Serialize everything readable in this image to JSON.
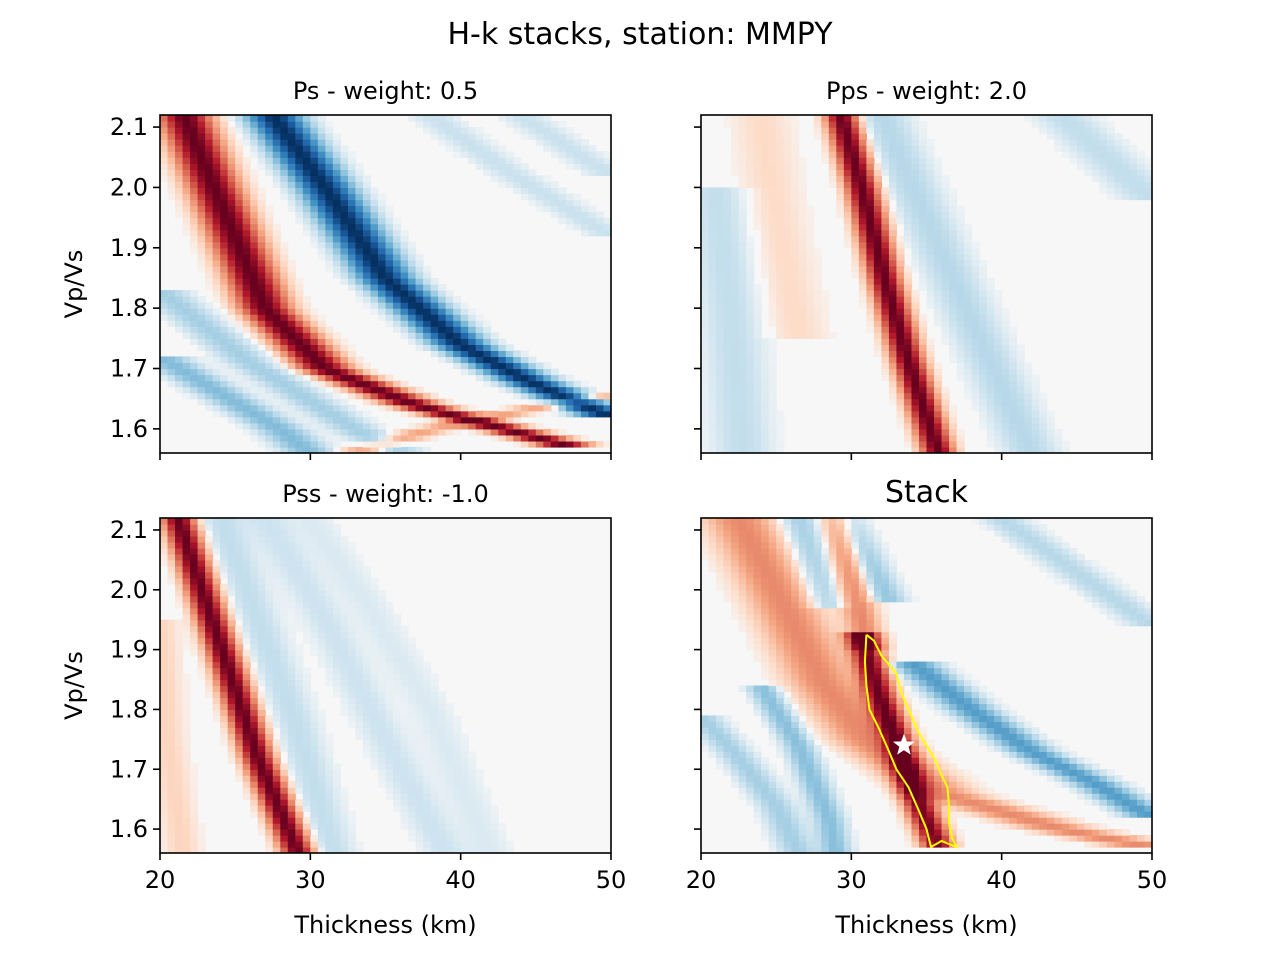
{
  "figure": {
    "title": "H-k stacks, station: MMPY"
  },
  "chart_data": [
    {
      "id": "ps",
      "type": "heatmap",
      "title": "Ps - weight: 0.5",
      "xlabel": "",
      "ylabel": "Vp/Vs",
      "xlim": [
        20,
        50
      ],
      "ylim": [
        1.56,
        2.12
      ],
      "xticks": [
        20,
        30,
        40,
        50
      ],
      "xtick_labels": [],
      "yticks": [
        1.6,
        1.7,
        1.8,
        1.9,
        2.0,
        2.1
      ],
      "ytick_labels": [
        "1.6",
        "1.7",
        "1.8",
        "1.9",
        "2.0",
        "2.1"
      ],
      "colormap": "RdBu_r",
      "bands": [
        {
          "sign": "positive",
          "amplitude": 1.0,
          "width_km": 1.6,
          "path": [
            [
              21.6,
              2.12
            ],
            [
              23.6,
              2.0
            ],
            [
              27.0,
              1.8
            ],
            [
              31.0,
              1.7
            ],
            [
              37.0,
              1.64
            ],
            [
              47.5,
              1.57
            ]
          ]
        },
        {
          "sign": "negative",
          "amplitude": 1.0,
          "width_km": 1.7,
          "path": [
            [
              27.5,
              2.12
            ],
            [
              31.0,
              2.0
            ],
            [
              35.0,
              1.85
            ],
            [
              40.0,
              1.74
            ],
            [
              44.5,
              1.68
            ],
            [
              50.0,
              1.62
            ]
          ]
        },
        {
          "sign": "negative",
          "amplitude": 0.3,
          "width_km": 1.6,
          "path": [
            [
              20.0,
              1.72
            ],
            [
              24.0,
              1.66
            ],
            [
              28.0,
              1.6
            ],
            [
              30.0,
              1.56
            ]
          ]
        },
        {
          "sign": "negative",
          "amplitude": 0.2,
          "width_km": 1.6,
          "path": [
            [
              20.0,
              1.83
            ],
            [
              26.0,
              1.71
            ],
            [
              33.0,
              1.6
            ],
            [
              36.0,
              1.56
            ]
          ]
        },
        {
          "sign": "negative",
          "amplitude": 0.1,
          "width_km": 1.5,
          "path": [
            [
              44.0,
              2.12
            ],
            [
              47.0,
              2.07
            ],
            [
              50.0,
              2.02
            ]
          ]
        },
        {
          "sign": "negative",
          "amplitude": 0.1,
          "width_km": 1.5,
          "path": [
            [
              38.0,
              2.12
            ],
            [
              43.0,
              2.03
            ],
            [
              50.0,
              1.92
            ]
          ]
        },
        {
          "sign": "positive",
          "amplitude": 0.25,
          "width_km": 1.5,
          "path": [
            [
              33.0,
              1.56
            ],
            [
              38.0,
              1.6
            ],
            [
              44.0,
              1.63
            ],
            [
              50.0,
              1.66
            ]
          ]
        }
      ]
    },
    {
      "id": "pps",
      "type": "heatmap",
      "title": "Pps - weight: 2.0",
      "xlabel": "",
      "ylabel": "",
      "xlim": [
        20,
        50
      ],
      "ylim": [
        1.56,
        2.12
      ],
      "xticks": [
        20,
        30,
        40,
        50
      ],
      "xtick_labels": [],
      "yticks": [
        1.6,
        1.7,
        1.8,
        1.9,
        2.0,
        2.1
      ],
      "ytick_labels": [],
      "colormap": "RdBu_r",
      "bands": [
        {
          "sign": "positive",
          "amplitude": 1.0,
          "width_km": 1.0,
          "path": [
            [
              29.3,
              2.12
            ],
            [
              30.7,
              2.0
            ],
            [
              32.2,
              1.85
            ],
            [
              33.7,
              1.72
            ],
            [
              35.8,
              1.56
            ]
          ]
        },
        {
          "sign": "negative",
          "amplitude": 0.15,
          "width_km": 1.8,
          "path": [
            [
              32.0,
              2.12
            ],
            [
              35.0,
              1.95
            ],
            [
              38.0,
              1.78
            ],
            [
              42.0,
              1.56
            ]
          ]
        },
        {
          "sign": "negative",
          "amplitude": 0.12,
          "width_km": 2.0,
          "path": [
            [
              21.0,
              2.0
            ],
            [
              22.0,
              1.8
            ],
            [
              22.8,
              1.56
            ]
          ]
        },
        {
          "sign": "positive",
          "amplitude": 0.08,
          "width_km": 2.0,
          "path": [
            [
              24.0,
              2.12
            ],
            [
              25.0,
              1.95
            ],
            [
              26.5,
              1.75
            ]
          ]
        },
        {
          "sign": "negative",
          "amplitude": 0.12,
          "width_km": 2.0,
          "path": [
            [
              44.0,
              2.12
            ],
            [
              47.0,
              2.05
            ],
            [
              50.0,
              1.98
            ]
          ]
        }
      ]
    },
    {
      "id": "pss",
      "type": "heatmap",
      "title": "Pss - weight: -1.0",
      "xlabel": "Thickness (km)",
      "ylabel": "Vp/Vs",
      "xlim": [
        20,
        50
      ],
      "ylim": [
        1.56,
        2.12
      ],
      "xticks": [
        20,
        30,
        40,
        50
      ],
      "xtick_labels": [
        "20",
        "30",
        "40",
        "50"
      ],
      "yticks": [
        1.6,
        1.7,
        1.8,
        1.9,
        2.0,
        2.1
      ],
      "ytick_labels": [
        "1.6",
        "1.7",
        "1.8",
        "1.9",
        "2.0",
        "2.1"
      ],
      "colormap": "RdBu_r",
      "bands": [
        {
          "sign": "positive",
          "amplitude": 1.0,
          "width_km": 1.0,
          "path": [
            [
              21.2,
              2.12
            ],
            [
              22.8,
              2.0
            ],
            [
              24.8,
              1.85
            ],
            [
              26.5,
              1.72
            ],
            [
              29.2,
              1.56
            ]
          ]
        },
        {
          "sign": "negative",
          "amplitude": 0.12,
          "width_km": 1.5,
          "path": [
            [
              24.0,
              2.12
            ],
            [
              26.5,
              1.95
            ],
            [
              29.0,
              1.78
            ],
            [
              31.5,
              1.56
            ]
          ]
        },
        {
          "sign": "negative",
          "amplitude": 0.09,
          "width_km": 1.5,
          "path": [
            [
              27.0,
              2.12
            ],
            [
              31.0,
              1.95
            ],
            [
              35.0,
              1.75
            ],
            [
              39.0,
              1.56
            ]
          ]
        },
        {
          "sign": "negative",
          "amplitude": 0.06,
          "width_km": 1.5,
          "path": [
            [
              30.0,
              2.12
            ],
            [
              34.0,
              1.97
            ],
            [
              38.0,
              1.8
            ],
            [
              42.0,
              1.56
            ]
          ]
        },
        {
          "sign": "positive",
          "amplitude": 0.1,
          "width_km": 1.2,
          "path": [
            [
              20.0,
              1.95
            ],
            [
              20.5,
              1.75
            ],
            [
              21.5,
              1.56
            ]
          ]
        }
      ]
    },
    {
      "id": "stack",
      "type": "heatmap",
      "title": "Stack",
      "xlabel": "Thickness (km)",
      "ylabel": "",
      "xlim": [
        20,
        50
      ],
      "ylim": [
        1.56,
        2.12
      ],
      "xticks": [
        20,
        30,
        40,
        50
      ],
      "xtick_labels": [
        "20",
        "30",
        "40",
        "50"
      ],
      "yticks": [
        1.6,
        1.7,
        1.8,
        1.9,
        2.0,
        2.1
      ],
      "ytick_labels": [],
      "colormap": "RdBu_r",
      "bands": [
        {
          "sign": "positive",
          "amplitude": 0.95,
          "width_km": 1.0,
          "path": [
            [
              30.6,
              1.93
            ],
            [
              31.8,
              1.83
            ],
            [
              33.0,
              1.75
            ],
            [
              34.2,
              1.66
            ],
            [
              35.8,
              1.57
            ]
          ]
        },
        {
          "sign": "positive",
          "amplitude": 0.35,
          "width_km": 1.1,
          "path": [
            [
              29.0,
              2.12
            ],
            [
              30.0,
              2.02
            ],
            [
              31.2,
              1.9
            ]
          ]
        },
        {
          "sign": "positive",
          "amplitude": 0.35,
          "width_km": 2.2,
          "path": [
            [
              22.5,
              2.12
            ],
            [
              25.0,
              2.0
            ],
            [
              28.0,
              1.85
            ],
            [
              31.0,
              1.75
            ],
            [
              36.0,
              1.66
            ],
            [
              44.0,
              1.6
            ],
            [
              50.0,
              1.57
            ]
          ]
        },
        {
          "sign": "negative",
          "amplitude": 0.45,
          "width_km": 1.5,
          "path": [
            [
              34.0,
              1.88
            ],
            [
              38.0,
              1.8
            ],
            [
              42.0,
              1.73
            ],
            [
              46.0,
              1.68
            ],
            [
              50.0,
              1.62
            ]
          ]
        },
        {
          "sign": "negative",
          "amplitude": 0.25,
          "width_km": 1.2,
          "path": [
            [
              29.5,
              2.12
            ],
            [
              31.0,
              2.05
            ],
            [
              32.5,
              1.98
            ]
          ]
        },
        {
          "sign": "negative",
          "amplitude": 0.2,
          "width_km": 1.2,
          "path": [
            [
              20.0,
              1.79
            ],
            [
              22.5,
              1.72
            ],
            [
              25.0,
              1.64
            ],
            [
              26.5,
              1.56
            ]
          ]
        },
        {
          "sign": "negative",
          "amplitude": 0.28,
          "width_km": 1.0,
          "path": [
            [
              24.0,
              1.84
            ],
            [
              26.5,
              1.74
            ],
            [
              28.5,
              1.62
            ],
            [
              29.0,
              1.56
            ]
          ]
        },
        {
          "sign": "negative",
          "amplitude": 0.2,
          "width_km": 1.3,
          "path": [
            [
              26.5,
              2.12
            ],
            [
              27.5,
              2.05
            ],
            [
              28.5,
              1.97
            ]
          ]
        },
        {
          "sign": "negative",
          "amplitude": 0.15,
          "width_km": 1.5,
          "path": [
            [
              40.0,
              2.12
            ],
            [
              45.0,
              2.03
            ],
            [
              50.0,
              1.94
            ]
          ]
        }
      ],
      "contour": {
        "color": "#ffff00",
        "points": [
          [
            31.0,
            1.925
          ],
          [
            31.5,
            1.915
          ],
          [
            32.0,
            1.89
          ],
          [
            33.0,
            1.86
          ],
          [
            33.3,
            1.83
          ],
          [
            33.8,
            1.8
          ],
          [
            34.5,
            1.76
          ],
          [
            35.0,
            1.74
          ],
          [
            35.5,
            1.72
          ],
          [
            36.0,
            1.69
          ],
          [
            36.4,
            1.67
          ],
          [
            36.5,
            1.64
          ],
          [
            36.5,
            1.61
          ],
          [
            36.7,
            1.585
          ],
          [
            37.0,
            1.57
          ],
          [
            36.0,
            1.58
          ],
          [
            35.3,
            1.57
          ],
          [
            35.0,
            1.6
          ],
          [
            34.5,
            1.63
          ],
          [
            33.8,
            1.67
          ],
          [
            33.0,
            1.7
          ],
          [
            32.5,
            1.73
          ],
          [
            31.8,
            1.77
          ],
          [
            31.2,
            1.8
          ],
          [
            31.0,
            1.84
          ],
          [
            30.9,
            1.88
          ],
          [
            31.0,
            1.925
          ]
        ]
      },
      "max_marker": {
        "x": 33.5,
        "y": 1.74,
        "color": "#ffffff",
        "shape": "star"
      }
    }
  ]
}
